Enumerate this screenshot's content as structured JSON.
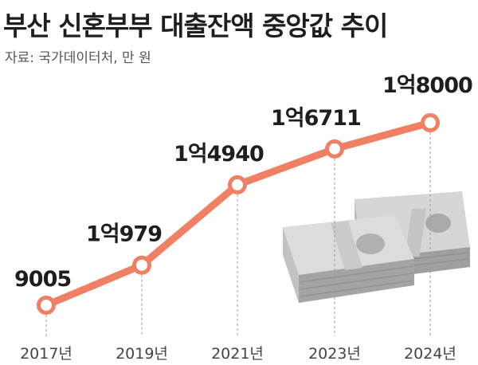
{
  "header": {
    "title": "부산 신혼부부 대출잔액 중앙값 추이",
    "source": "자료: 국가데이터처, 만 원"
  },
  "colors": {
    "line": "#ef8063",
    "title": "#1e1e1e",
    "label": "#1e1e1e",
    "axis_label": "#444444",
    "guide": "#9a9a9a",
    "money": "#b9b9b9"
  },
  "illustration": {
    "icon": "money-stack-icon"
  },
  "chart_data": {
    "type": "line",
    "categories": [
      "2017년",
      "2019년",
      "2021년",
      "2023년",
      "2024년"
    ],
    "values": [
      9005,
      10979,
      14940,
      16711,
      18000
    ],
    "value_labels": [
      "9005",
      "1억979",
      "1억4940",
      "1억6711",
      "1억8000"
    ],
    "ylim": [
      9005,
      18000
    ],
    "grid": false,
    "legend": "none"
  }
}
